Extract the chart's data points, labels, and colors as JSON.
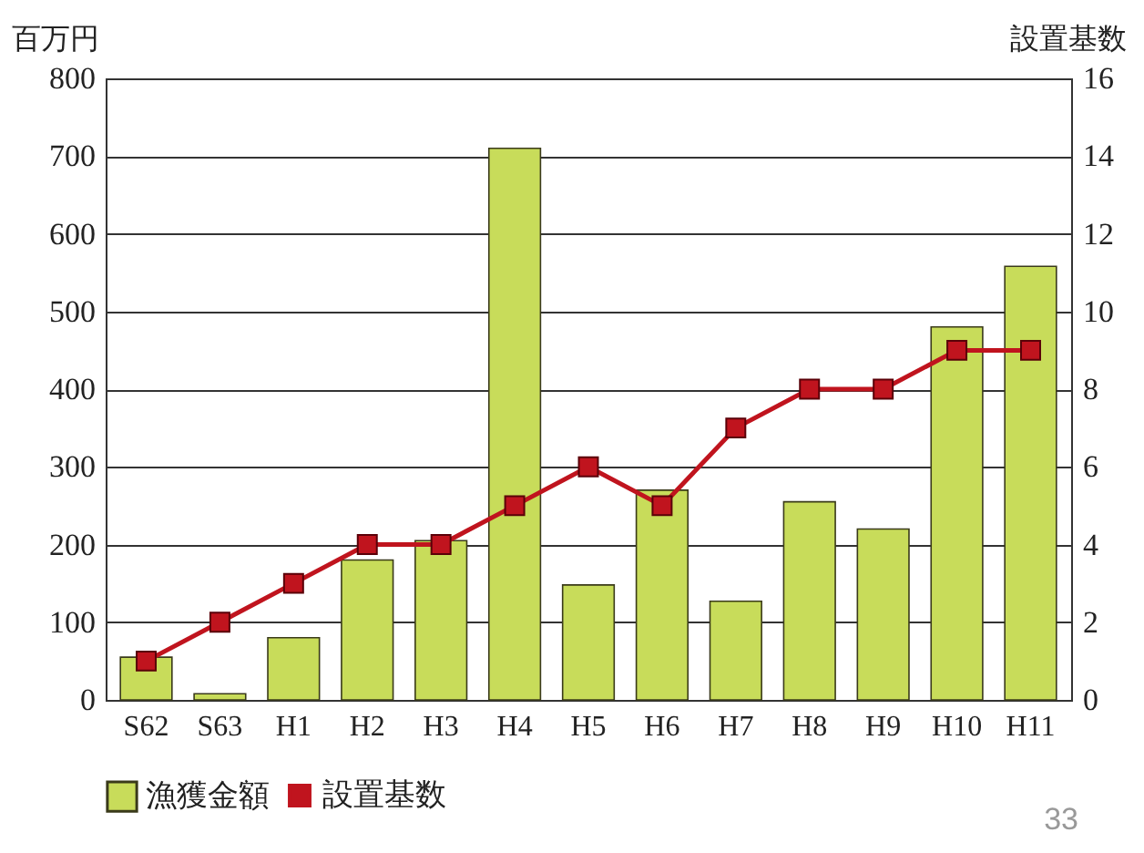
{
  "chart_data": {
    "type": "bar",
    "categories": [
      "S62",
      "S63",
      "H1",
      "H2",
      "H3",
      "H4",
      "H5",
      "H6",
      "H7",
      "H8",
      "H9",
      "H10",
      "H11"
    ],
    "series": [
      {
        "name": "設置基数",
        "type": "line",
        "axis": "y2",
        "color": "#c0141e",
        "values": [
          1,
          2,
          3,
          4,
          4,
          5,
          6,
          5,
          7,
          8,
          8,
          9,
          9
        ]
      },
      {
        "name": "漁獲金額",
        "color": "#c8dc5a",
        "values": [
          55,
          8,
          80,
          180,
          205,
          710,
          148,
          270,
          127,
          255,
          220,
          480,
          558
        ]
      }
    ],
    "ylabel": "百万円",
    "y2label": "設置基数",
    "ylim": [
      0,
      800
    ],
    "yticks": [
      0,
      100,
      200,
      300,
      400,
      500,
      600,
      700,
      800
    ],
    "y2lim": [
      0,
      16
    ],
    "y2ticks": [
      0,
      2,
      4,
      6,
      8,
      10,
      12,
      14,
      16
    ],
    "grid": "y",
    "legend": "bottom",
    "marker": "square",
    "annotations": [
      "33"
    ]
  }
}
